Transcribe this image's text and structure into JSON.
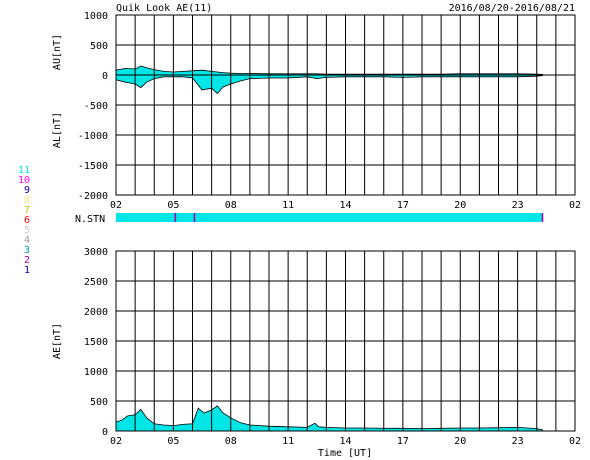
{
  "header": {
    "title": "Quik Look AE(11)",
    "date_range": "2016/08/20-2016/08/21"
  },
  "stations": {
    "label": "N.STN",
    "legend": [
      {
        "label": "11",
        "color": "#00e5e5"
      },
      {
        "label": "10",
        "color": "#ff00ff"
      },
      {
        "label": "9",
        "color": "#0000cc"
      },
      {
        "label": "8",
        "color": "#ffe680"
      },
      {
        "label": "7",
        "color": "#cccc00"
      },
      {
        "label": "6",
        "color": "#ff0000"
      },
      {
        "label": "5",
        "color": "#c8c8c8"
      },
      {
        "label": "4",
        "color": "#999999"
      },
      {
        "label": "3",
        "color": "#00a0a0"
      },
      {
        "label": "2",
        "color": "#aa00aa"
      },
      {
        "label": "1",
        "color": "#0000aa"
      }
    ],
    "bar_color": "#00e5e5",
    "bar_start_hour": 2,
    "bar_end_hour": 24.3,
    "marker_color": "#aa00aa",
    "marker_hours": [
      5.1,
      6.1,
      24.3
    ]
  },
  "chart_data": [
    {
      "type": "area",
      "panel": "AU/AL",
      "ylabel_upper": "AU[nT]",
      "ylabel_lower": "AL[nT]",
      "ylim": [
        -2000,
        1000
      ],
      "yticks": [
        1000,
        500,
        0,
        -500,
        -1000,
        -1500,
        -2000
      ],
      "xlim": [
        2,
        26
      ],
      "xticks": [
        "02",
        "05",
        "08",
        "11",
        "14",
        "17",
        "20",
        "23",
        "02"
      ],
      "fill_color": "#00e5e5",
      "x": [
        2.0,
        2.5,
        3.0,
        3.3,
        3.6,
        4.0,
        4.5,
        5.0,
        5.5,
        6.0,
        6.5,
        7.0,
        7.3,
        7.6,
        8.0,
        8.5,
        9.0,
        10.0,
        11.0,
        12.0,
        12.5,
        13.0,
        14.0,
        15.0,
        16.0,
        17.0,
        18.0,
        19.0,
        20.0,
        21.0,
        22.0,
        23.0,
        24.0,
        24.3
      ],
      "au": [
        80,
        110,
        100,
        150,
        120,
        90,
        60,
        50,
        60,
        70,
        80,
        60,
        50,
        40,
        30,
        25,
        25,
        20,
        20,
        20,
        20,
        15,
        15,
        15,
        15,
        15,
        15,
        15,
        20,
        20,
        20,
        20,
        15,
        10
      ],
      "al": [
        -80,
        -120,
        -150,
        -210,
        -120,
        -60,
        -30,
        -30,
        -30,
        -50,
        -250,
        -220,
        -310,
        -200,
        -150,
        -100,
        -60,
        -50,
        -50,
        -30,
        -60,
        -40,
        -30,
        -30,
        -30,
        -40,
        -30,
        -30,
        -30,
        -30,
        -30,
        -30,
        -20,
        -10
      ]
    },
    {
      "type": "area",
      "panel": "AE",
      "ylabel": "AE[nT]",
      "xlabel": "Time [UT]",
      "ylim": [
        0,
        3000
      ],
      "yticks": [
        3000,
        2500,
        2000,
        1500,
        1000,
        500,
        0
      ],
      "xlim": [
        2,
        26
      ],
      "xticks": [
        "02",
        "05",
        "08",
        "11",
        "14",
        "17",
        "20",
        "23",
        "02"
      ],
      "fill_color": "#00e5e5",
      "x": [
        2.0,
        2.3,
        2.6,
        3.0,
        3.3,
        3.6,
        4.0,
        4.5,
        5.0,
        5.5,
        6.0,
        6.3,
        6.6,
        7.0,
        7.3,
        7.6,
        8.0,
        8.5,
        9.0,
        10.0,
        11.0,
        12.0,
        12.4,
        12.6,
        13.0,
        14.0,
        15.0,
        16.0,
        17.0,
        18.0,
        19.0,
        20.0,
        21.0,
        22.0,
        23.0,
        24.0,
        24.3
      ],
      "values": [
        150,
        180,
        250,
        270,
        360,
        220,
        120,
        100,
        90,
        110,
        120,
        380,
        300,
        350,
        420,
        300,
        220,
        140,
        100,
        80,
        70,
        60,
        130,
        70,
        60,
        50,
        50,
        45,
        45,
        40,
        45,
        50,
        50,
        55,
        60,
        40,
        20
      ]
    }
  ]
}
